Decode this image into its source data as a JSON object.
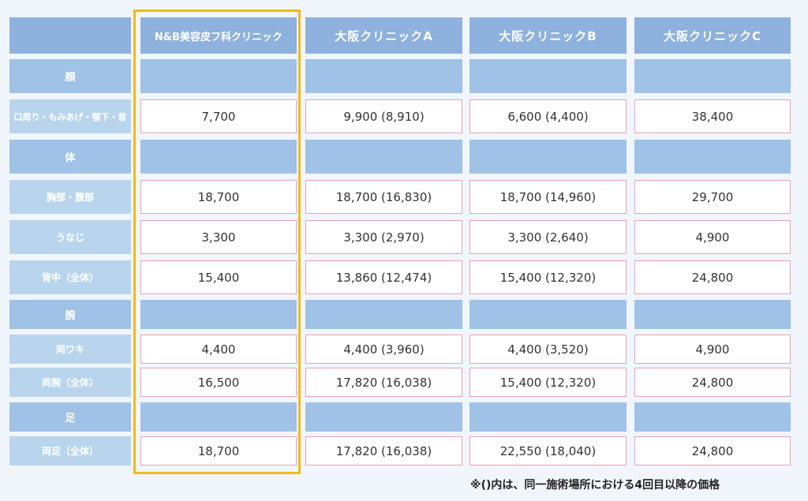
{
  "header": {
    "clinics": [
      "N&B美容皮フ科クリニック",
      "大阪クリニックA",
      "大阪クリニックB",
      "大阪クリニックC"
    ]
  },
  "rows": [
    {
      "type": "section",
      "label": "顔",
      "values": []
    },
    {
      "type": "item",
      "label": "口周り・もみあげ・顎下・首",
      "values": [
        "7,700",
        "9,900 (8,910)",
        "6,600 (4,400)",
        "38,400"
      ]
    },
    {
      "type": "section",
      "label": "体",
      "values": []
    },
    {
      "type": "item",
      "label": "胸部・腹部",
      "values": [
        "18,700",
        "18,700 (16,830)",
        "18,700 (14,960)",
        "29,700"
      ]
    },
    {
      "type": "item",
      "label": "うなじ",
      "values": [
        "3,300",
        "3,300 (2,970)",
        "3,300 (2,640)",
        "4,900"
      ]
    },
    {
      "type": "item",
      "label": "背中（全体）",
      "values": [
        "15,400",
        "13,860 (12,474)",
        "15,400 (12,320)",
        "24,800"
      ]
    },
    {
      "type": "section",
      "label": "腕",
      "values": []
    },
    {
      "type": "item",
      "label": "両ワキ",
      "values": [
        "4,400",
        "4,400 (3,960)",
        "4,400 (3,520)",
        "4,900"
      ]
    },
    {
      "type": "item",
      "label": "両腕（全体）",
      "values": [
        "16,500",
        "17,820 (16,038)",
        "15,400 (12,320)",
        "24,800"
      ]
    },
    {
      "type": "section",
      "label": "足",
      "values": []
    },
    {
      "type": "item",
      "label": "両足（全体）",
      "values": [
        "18,700",
        "17,820 (16,038)",
        "22,550 (18,040)",
        "24,800"
      ]
    }
  ],
  "footnote": "※()内は、同一施術場所における4回目以降の価格",
  "colors": {
    "header_bg": "#8eb1de",
    "section_bg": "#9fc2e6",
    "label_bg": "#b9d5ee",
    "value_border": "#e8a2b5",
    "highlight_border": "#f2b91a"
  }
}
